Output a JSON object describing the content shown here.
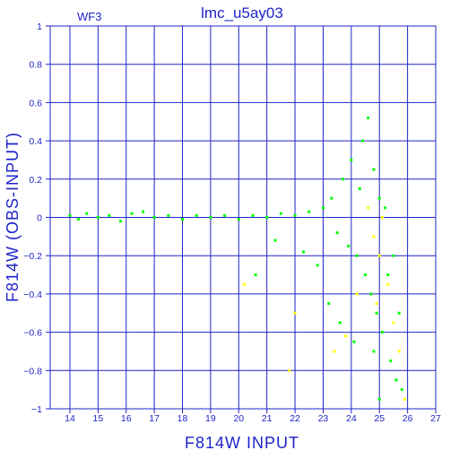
{
  "chart_data": {
    "type": "scatter",
    "title": "lmc_u5ay03",
    "panel_label": "WF3",
    "xlabel": "F814W INPUT",
    "ylabel": "F814W (OBS-INPUT)",
    "xlim": [
      13.3,
      27
    ],
    "ylim": [
      -1,
      1
    ],
    "x_ticks": [
      14,
      15,
      16,
      17,
      18,
      19,
      20,
      21,
      22,
      23,
      24,
      25,
      26,
      27
    ],
    "y_ticks": [
      -1,
      -0.8,
      -0.6,
      -0.4,
      -0.2,
      0,
      0.2,
      0.4,
      0.6,
      0.8,
      1
    ],
    "y_tick_labels": [
      "−1",
      "−0.8",
      "−0.6",
      "−0.4",
      "−0.2",
      "0",
      "0.2",
      "0.4",
      "0.6",
      "0.8",
      "1"
    ],
    "grid": true,
    "series": [
      {
        "color": "#00ff00",
        "points": [
          [
            14.0,
            0.01
          ],
          [
            14.3,
            -0.01
          ],
          [
            14.6,
            0.02
          ],
          [
            15.0,
            0.0
          ],
          [
            15.4,
            0.01
          ],
          [
            15.8,
            -0.02
          ],
          [
            16.2,
            0.02
          ],
          [
            16.6,
            0.03
          ],
          [
            17.0,
            0.0
          ],
          [
            17.5,
            0.01
          ],
          [
            18.0,
            -0.01
          ],
          [
            18.5,
            0.01
          ],
          [
            19.0,
            0.0
          ],
          [
            19.5,
            0.01
          ],
          [
            20.0,
            -0.01
          ],
          [
            20.5,
            0.01
          ],
          [
            21.0,
            0.0
          ],
          [
            21.5,
            0.02
          ],
          [
            22.0,
            0.01
          ],
          [
            22.5,
            0.03
          ],
          [
            23.0,
            0.05
          ],
          [
            23.3,
            0.1
          ],
          [
            23.5,
            -0.08
          ],
          [
            23.7,
            0.2
          ],
          [
            23.9,
            -0.15
          ],
          [
            24.0,
            0.3
          ],
          [
            24.2,
            -0.2
          ],
          [
            24.4,
            0.4
          ],
          [
            24.5,
            -0.3
          ],
          [
            24.6,
            0.52
          ],
          [
            24.7,
            -0.4
          ],
          [
            24.8,
            0.25
          ],
          [
            24.9,
            -0.5
          ],
          [
            25.0,
            0.1
          ],
          [
            25.1,
            -0.6
          ],
          [
            25.2,
            0.05
          ],
          [
            25.3,
            -0.3
          ],
          [
            25.4,
            -0.75
          ],
          [
            25.5,
            -0.2
          ],
          [
            25.6,
            -0.85
          ],
          [
            25.7,
            -0.5
          ],
          [
            25.8,
            -0.9
          ],
          [
            22.8,
            -0.25
          ],
          [
            23.2,
            -0.45
          ],
          [
            23.6,
            -0.55
          ],
          [
            24.1,
            -0.65
          ],
          [
            20.6,
            -0.3
          ],
          [
            21.3,
            -0.12
          ],
          [
            22.3,
            -0.18
          ],
          [
            24.3,
            0.15
          ],
          [
            25.0,
            -0.95
          ],
          [
            24.8,
            -0.7
          ]
        ]
      },
      {
        "color": "#ffff00",
        "points": [
          [
            24.6,
            0.05
          ],
          [
            24.8,
            -0.1
          ],
          [
            25.0,
            -0.2
          ],
          [
            25.1,
            0.0
          ],
          [
            25.3,
            -0.35
          ],
          [
            25.5,
            -0.55
          ],
          [
            25.7,
            -0.7
          ],
          [
            24.2,
            -0.4
          ],
          [
            23.8,
            -0.62
          ],
          [
            22.0,
            -0.5
          ],
          [
            20.2,
            -0.35
          ],
          [
            21.8,
            -0.8
          ],
          [
            25.9,
            -0.95
          ],
          [
            24.9,
            -0.45
          ],
          [
            23.4,
            -0.7
          ]
        ]
      }
    ]
  }
}
